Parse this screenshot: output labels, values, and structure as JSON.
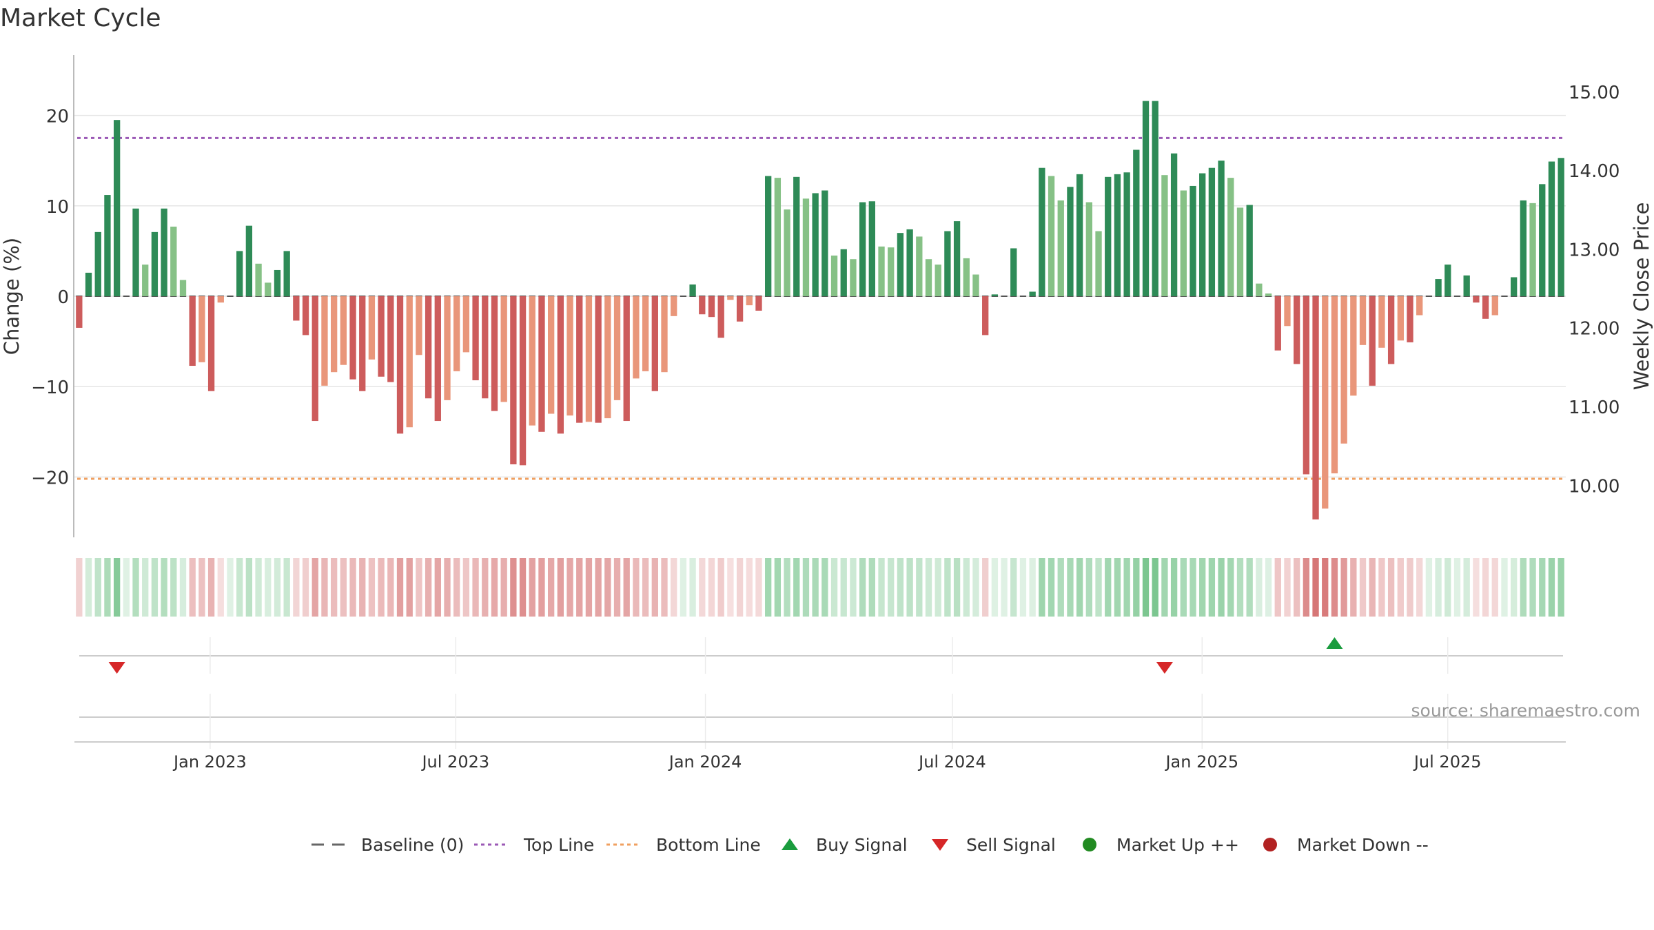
{
  "chart_data": {
    "title": "Market Cycle",
    "type": "bar",
    "ylabel_left": "Change (%)",
    "ylabel_right": "Weekly Close Price",
    "ylim_left": [
      -27,
      27
    ],
    "yticks_left": [
      20,
      10,
      0,
      -10,
      -20
    ],
    "ytick_labels_left": [
      "20",
      "10",
      "0",
      "−10",
      "−20"
    ],
    "ylim_right": [
      9.3,
      15.5
    ],
    "yticks_right": [
      15,
      14,
      13,
      12,
      11,
      10
    ],
    "ytick_labels_right": [
      "15.00",
      "14.00",
      "13.00",
      "12.00",
      "11.00",
      "10.00"
    ],
    "x_ticks": [
      {
        "label": "Jan 2023",
        "date": "2023-01-01"
      },
      {
        "label": "Jul 2023",
        "date": "2023-07-01"
      },
      {
        "label": "Jan 2024",
        "date": "2024-01-01"
      },
      {
        "label": "Jul 2024",
        "date": "2024-07-01"
      },
      {
        "label": "Jan 2025",
        "date": "2025-01-01"
      },
      {
        "label": "Jul 2025",
        "date": "2025-07-01"
      }
    ],
    "x_range": [
      "2022-09-23",
      "2025-09-26"
    ],
    "top_line": 17.5,
    "bottom_line": -20.2,
    "values": [
      -3.5,
      2.6,
      7.1,
      11.2,
      19.5,
      0,
      9.7,
      3.5,
      7.1,
      9.7,
      7.7,
      1.8,
      -7.7,
      -7.3,
      -10.5,
      -0.7,
      0,
      5,
      7.8,
      3.6,
      1.5,
      2.9,
      5,
      -2.7,
      -4.3,
      -13.8,
      -9.9,
      -8.4,
      -7.6,
      -9.2,
      -10.5,
      -7,
      -8.9,
      -9.5,
      -15.2,
      -14.5,
      -6.5,
      -11.3,
      -13.8,
      -11.5,
      -8.3,
      -6.2,
      -9.3,
      -11.3,
      -12.7,
      -11.7,
      -18.6,
      -18.7,
      -14.3,
      -15,
      -13,
      -15.2,
      -13.2,
      -14,
      -13.9,
      -14,
      -13.5,
      -11.5,
      -13.8,
      -9.1,
      -8.3,
      -10.5,
      -8.4,
      -2.2,
      0,
      1.3,
      -2,
      -2.3,
      -4.6,
      -0.4,
      -2.8,
      -1,
      -1.6,
      13.3,
      13.1,
      9.6,
      13.2,
      10.8,
      11.4,
      11.7,
      4.5,
      5.2,
      4.1,
      10.4,
      10.5,
      5.5,
      5.4,
      7,
      7.4,
      6.6,
      4.1,
      3.5,
      7.2,
      8.3,
      4.2,
      2.4,
      -4.3,
      0.2,
      0,
      5.3,
      0,
      0.5,
      14.2,
      13.3,
      10.6,
      12.1,
      13.5,
      10.4,
      7.2,
      13.2,
      13.5,
      13.7,
      16.2,
      21.6,
      21.6,
      13.4,
      15.8,
      11.7,
      12.2,
      13.6,
      14.2,
      15,
      13.1,
      9.8,
      10.1,
      1.4,
      0.3,
      -6,
      -3.3,
      -7.5,
      -19.7,
      -24.7,
      -23.5,
      -19.6,
      -16.3,
      -11,
      -5.4,
      -9.9,
      -5.7,
      -7.5,
      -4.9,
      -5.1,
      -2.1,
      0,
      1.9,
      3.5,
      0,
      2.3,
      -0.7,
      -2.5,
      -2.1,
      0,
      2.1,
      10.6,
      10.3,
      12.4,
      14.9,
      15.3
    ],
    "buy_signals": [
      {
        "index": 133
      }
    ],
    "sell_signals": [
      {
        "index": 4
      },
      {
        "index": 115
      }
    ],
    "source": "source: sharemaestro.com",
    "colors": {
      "up_strong": "#2e8b57",
      "up_weak": "#86c186",
      "down_strong": "#cd5c5c",
      "down_weak": "#e9967a",
      "top_line": "#9b59b6",
      "bottom_line": "#f0a060",
      "buy": "#1a9c3e",
      "sell": "#d62728",
      "market_up": "#228b22",
      "market_down": "#b22222"
    },
    "legend": [
      {
        "label": "Baseline (0)",
        "kind": "dash",
        "color": "#666666"
      },
      {
        "label": "Top Line",
        "kind": "dotted",
        "color": "#9b59b6"
      },
      {
        "label": "Bottom Line",
        "kind": "dotted",
        "color": "#f0a060"
      },
      {
        "label": "Buy Signal",
        "kind": "triangle-up",
        "color": "#1a9c3e"
      },
      {
        "label": "Sell Signal",
        "kind": "triangle-down",
        "color": "#d62728"
      },
      {
        "label": "Market Up ++",
        "kind": "circle",
        "color": "#228b22"
      },
      {
        "label": "Market Down --",
        "kind": "circle",
        "color": "#b22222"
      }
    ],
    "legend_position": "bottom-center"
  }
}
